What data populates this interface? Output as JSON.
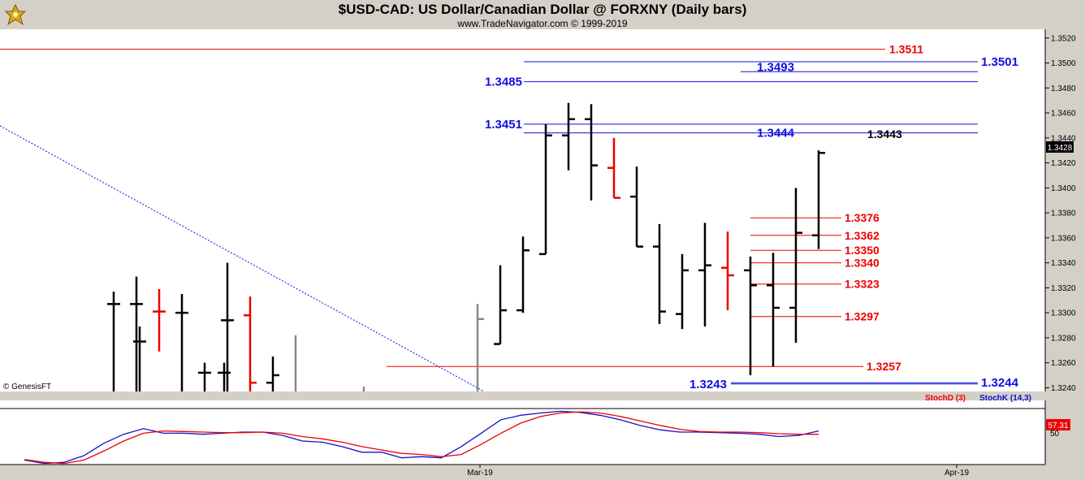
{
  "header": {
    "title": "$USD-CAD:  US Dollar/Canadian Dollar @ FORXNY  (Daily bars)",
    "subtitle": "www.TradeNavigator.com © 1999-2019"
  },
  "watermark": "© GenesisFT",
  "colors": {
    "background": "#ffffff",
    "frame": "#d4d0c8",
    "bull_bar": "#000000",
    "bear_bar": "#ee0000",
    "gray_bar": "#888888",
    "blue_level": "#1010e0",
    "red_level": "#ee0000",
    "stochK": "#1010d0",
    "stochD": "#ee0000"
  },
  "chart_data": [
    {
      "type": "ohlc",
      "title": "$USD-CAD:  US Dollar/Canadian Dollar @ FORXNY  (Daily bars)",
      "ylim": [
        1.3237,
        1.3527
      ],
      "y_ticks": [
        "1.3240",
        "1.3260",
        "1.3280",
        "1.3300",
        "1.3320",
        "1.3340",
        "1.3360",
        "1.3380",
        "1.3400",
        "1.3420",
        "1.3440",
        "1.3460",
        "1.3480",
        "1.3500",
        "1.3520"
      ],
      "x_ticks": [
        "Mar-19",
        "Apr-19"
      ],
      "last_price_tag": "1.3428",
      "bars": [
        {
          "h": 1.3317,
          "l": 1.3237,
          "o": 1.3307,
          "c": 1.3307,
          "color": "black"
        },
        {
          "h": 1.3329,
          "l": 1.3237,
          "o": 1.3307,
          "c": 1.3307,
          "color": "black"
        },
        {
          "h": 1.3289,
          "l": 1.3237,
          "o": 1.3277,
          "c": 1.3277,
          "color": "black"
        },
        {
          "h": 1.3319,
          "l": 1.3269,
          "o": 1.3301,
          "c": 1.3301,
          "color": "red"
        },
        {
          "h": 1.3315,
          "l": 1.3237,
          "o": 1.33,
          "c": 1.33,
          "color": "black"
        },
        {
          "h": 1.326,
          "l": 1.3237,
          "o": 1.3252,
          "c": 1.3252,
          "color": "black"
        },
        {
          "h": 1.326,
          "l": 1.3237,
          "o": 1.3252,
          "c": 1.3252,
          "color": "black"
        },
        {
          "h": 1.334,
          "l": 1.3237,
          "o": 1.3294,
          "c": 1.3294,
          "color": "black"
        },
        {
          "h": 1.3313,
          "l": 1.3237,
          "o": 1.3298,
          "c": 1.3244,
          "color": "red"
        },
        {
          "h": 1.3265,
          "l": 1.3237,
          "o": 1.3244,
          "c": 1.325,
          "color": "black"
        },
        {
          "h": 1.3282,
          "l": 1.3237,
          "o": null,
          "c": null,
          "color": "gray"
        },
        {
          "h": 1.3241,
          "l": 1.3237,
          "o": null,
          "c": null,
          "color": "gray"
        },
        {
          "h": 1.3307,
          "l": 1.3237,
          "o": null,
          "c": 1.3295,
          "color": "gray"
        },
        {
          "h": 1.3338,
          "l": 1.3275,
          "o": 1.3275,
          "c": 1.3302,
          "color": "black"
        },
        {
          "h": 1.3361,
          "l": 1.33,
          "o": 1.3302,
          "c": 1.335,
          "color": "black"
        },
        {
          "h": 1.3451,
          "l": 1.3347,
          "o": 1.3347,
          "c": 1.3442,
          "color": "black"
        },
        {
          "h": 1.3468,
          "l": 1.3414,
          "o": 1.3442,
          "c": 1.3455,
          "color": "black"
        },
        {
          "h": 1.3467,
          "l": 1.339,
          "o": 1.3455,
          "c": 1.3418,
          "color": "black"
        },
        {
          "h": 1.344,
          "l": 1.3392,
          "o": 1.3416,
          "c": 1.3392,
          "color": "red"
        },
        {
          "h": 1.3417,
          "l": 1.3353,
          "o": 1.3393,
          "c": 1.3353,
          "color": "black"
        },
        {
          "h": 1.3371,
          "l": 1.3291,
          "o": 1.3353,
          "c": 1.3301,
          "color": "black"
        },
        {
          "h": 1.3347,
          "l": 1.3287,
          "o": 1.3299,
          "c": 1.3334,
          "color": "black"
        },
        {
          "h": 1.3372,
          "l": 1.3289,
          "o": 1.3334,
          "c": 1.3338,
          "color": "black"
        },
        {
          "h": 1.3365,
          "l": 1.3302,
          "o": 1.3336,
          "c": 1.333,
          "color": "red"
        },
        {
          "h": 1.3345,
          "l": 1.325,
          "o": 1.3334,
          "c": 1.3322,
          "color": "black"
        },
        {
          "h": 1.3348,
          "l": 1.3257,
          "o": 1.3322,
          "c": 1.3304,
          "color": "black"
        },
        {
          "h": 1.34,
          "l": 1.3276,
          "o": 1.3304,
          "c": 1.3364,
          "color": "black"
        },
        {
          "h": 1.343,
          "l": 1.3351,
          "o": 1.3362,
          "c": 1.3428,
          "color": "black"
        }
      ],
      "blue_levels": [
        {
          "value": 1.3501,
          "label": "1.3501"
        },
        {
          "value": 1.3493,
          "label": "1.3493"
        },
        {
          "value": 1.3485,
          "label": "1.3485"
        },
        {
          "value": 1.3451,
          "label": "1.3451"
        },
        {
          "value": 1.3444,
          "label": "1.3444"
        },
        {
          "value": 1.3244,
          "label": "1.3244"
        },
        {
          "value": 1.3243,
          "label": "1.3243"
        }
      ],
      "red_levels": [
        {
          "value": 1.3511,
          "label": "1.3511"
        },
        {
          "value": 1.3376,
          "label": "1.3376"
        },
        {
          "value": 1.3362,
          "label": "1.3362"
        },
        {
          "value": 1.335,
          "label": "1.3350"
        },
        {
          "value": 1.334,
          "label": "1.3340"
        },
        {
          "value": 1.3323,
          "label": "1.3323"
        },
        {
          "value": 1.3297,
          "label": "1.3297"
        },
        {
          "value": 1.3257,
          "label": "1.3257"
        }
      ],
      "black_levels": [
        {
          "value": 1.3443,
          "label": "1.3443"
        }
      ]
    },
    {
      "type": "line",
      "legend": [
        "StochD (3)",
        "StochK (14,3)"
      ],
      "ylim": [
        0,
        100
      ],
      "y_ticks": [
        "50"
      ],
      "last_value_tag": "57.31",
      "series": [
        {
          "name": "StochK (14,3)",
          "color": "#1010d0",
          "values": [
            8,
            2,
            4,
            16,
            38,
            54,
            64,
            56,
            56,
            54,
            56,
            58,
            58,
            52,
            42,
            40,
            32,
            22,
            22,
            12,
            14,
            12,
            32,
            56,
            80,
            88,
            92,
            95,
            93,
            88,
            80,
            70,
            62,
            58,
            58,
            57,
            56,
            54,
            50,
            52,
            60
          ]
        },
        {
          "name": "StochD (3)",
          "color": "#ee0000",
          "values": [
            9,
            4,
            2,
            8,
            24,
            42,
            56,
            60,
            59,
            58,
            57,
            57,
            58,
            56,
            50,
            46,
            40,
            32,
            26,
            20,
            18,
            14,
            18,
            36,
            56,
            74,
            86,
            92,
            94,
            92,
            86,
            78,
            70,
            63,
            59,
            58,
            58,
            57,
            55,
            54,
            54
          ]
        }
      ]
    }
  ]
}
